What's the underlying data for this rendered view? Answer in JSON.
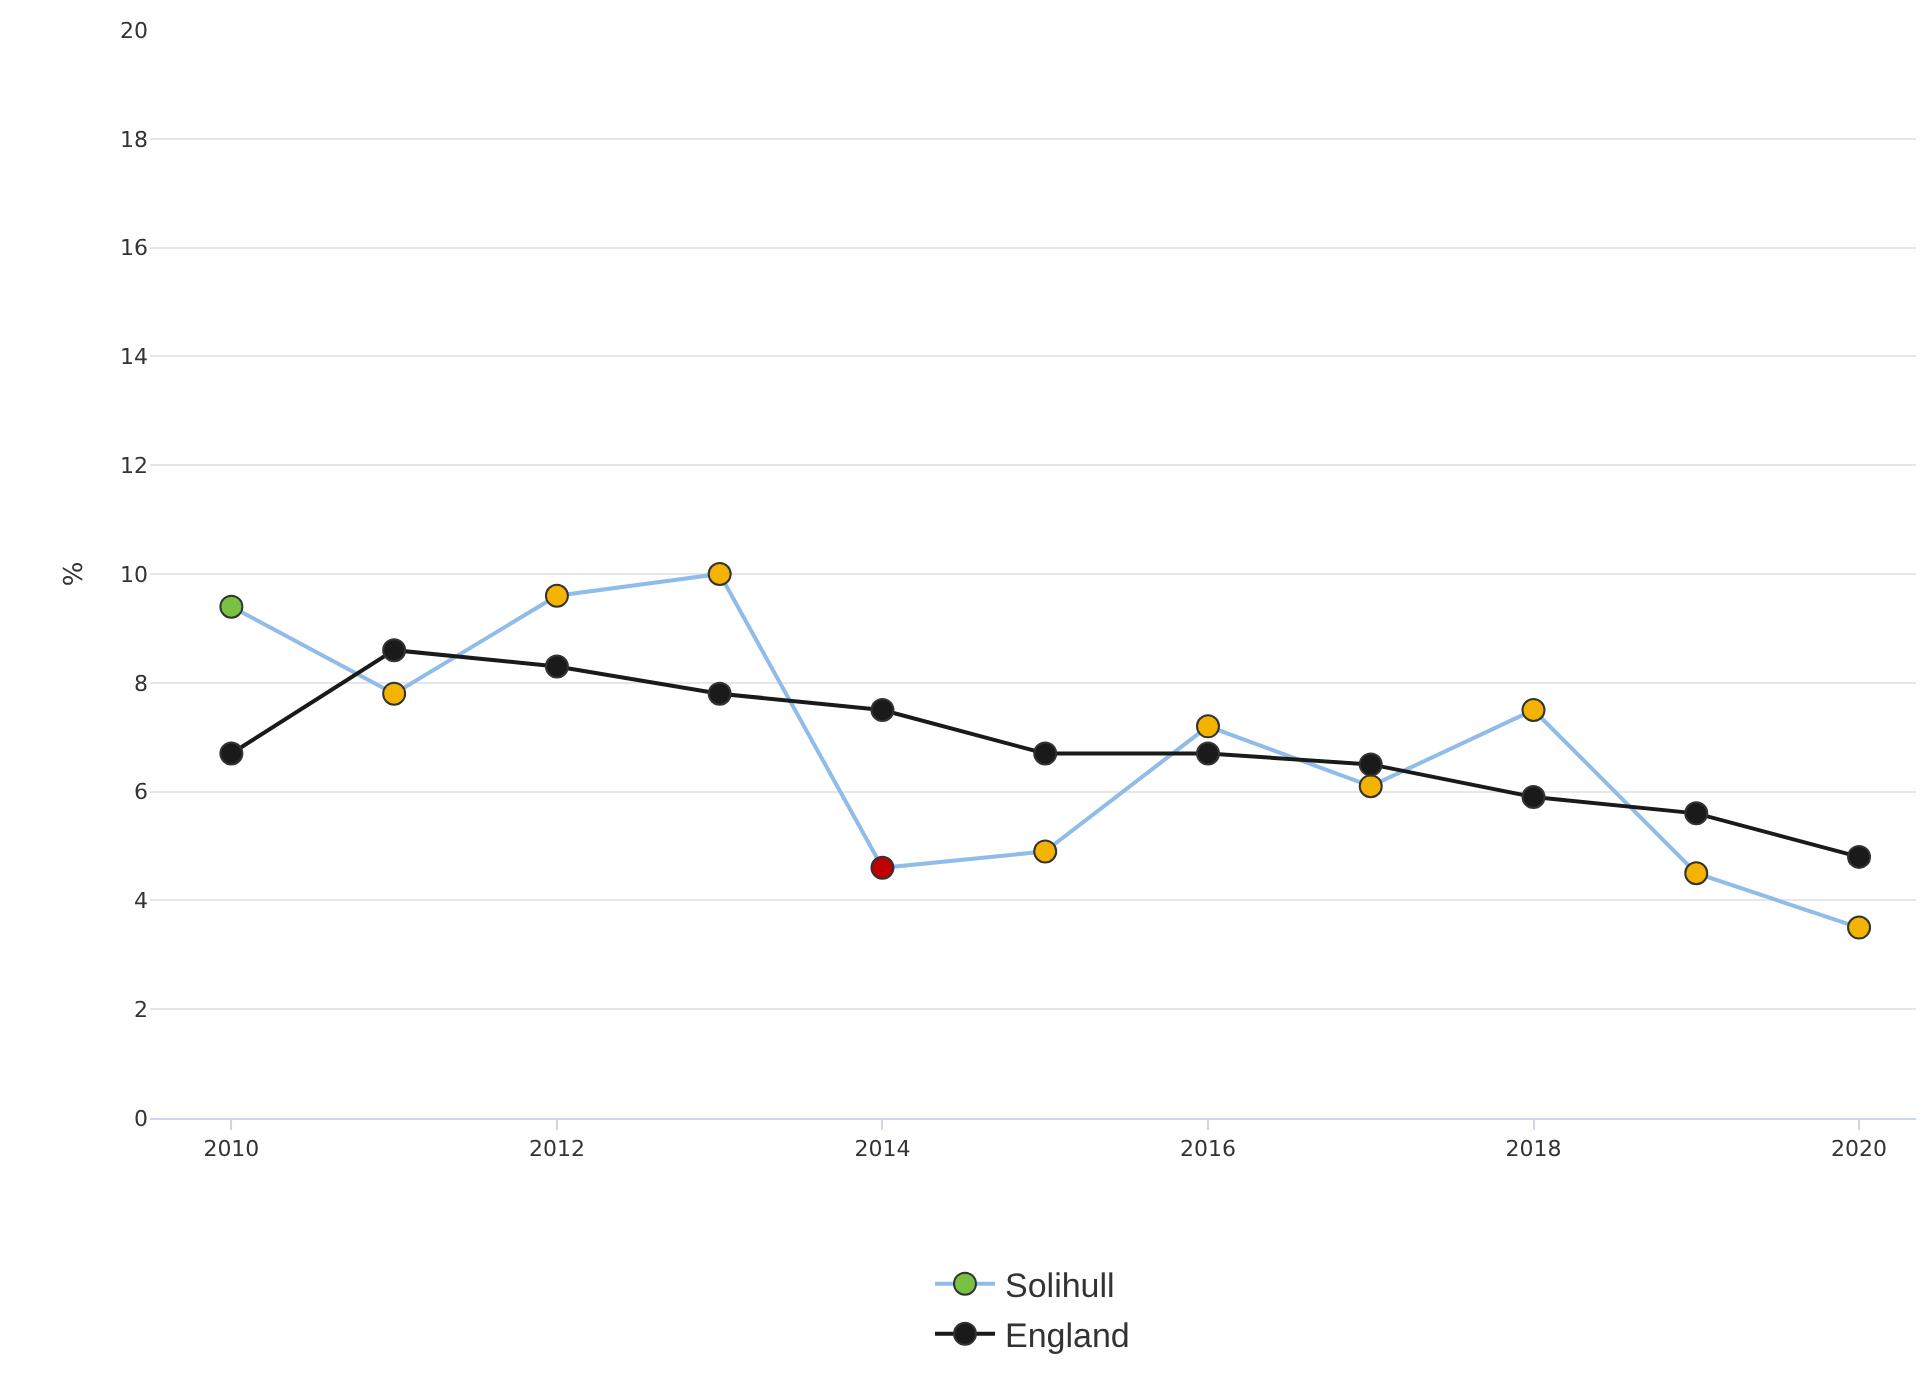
{
  "chart_data": {
    "type": "line",
    "ylabel": "%",
    "x": [
      2010,
      2011,
      2012,
      2013,
      2014,
      2015,
      2016,
      2017,
      2018,
      2019,
      2020
    ],
    "series": [
      {
        "name": "Solihull",
        "color": "#8fbce9",
        "values": [
          9.4,
          7.8,
          9.6,
          10.0,
          4.6,
          4.9,
          7.2,
          6.1,
          7.5,
          4.5,
          3.5
        ],
        "colors": [
          "#7ac143",
          "#f5b301",
          "#f5b301",
          "#f5b301",
          "#c00000",
          "#f5b301",
          "#f5b301",
          "#f5b301",
          "#f5b301",
          "#f5b301",
          "#f5b301"
        ]
      },
      {
        "name": "England",
        "color": "#1a1a1a",
        "values": [
          6.7,
          8.6,
          8.3,
          7.8,
          7.5,
          6.7,
          6.7,
          6.5,
          5.9,
          5.6,
          4.8
        ]
      }
    ],
    "xlim": [
      2009.5,
      2020.35
    ],
    "xticks": [
      2010,
      2012,
      2014,
      2016,
      2018,
      2020
    ],
    "ylim": [
      0,
      20
    ],
    "yticks": [
      0,
      2,
      4,
      6,
      8,
      10,
      12,
      14,
      16,
      18,
      20
    ],
    "grid": "y",
    "legend": "bottom",
    "marker": "circle",
    "line_style": "solid"
  }
}
